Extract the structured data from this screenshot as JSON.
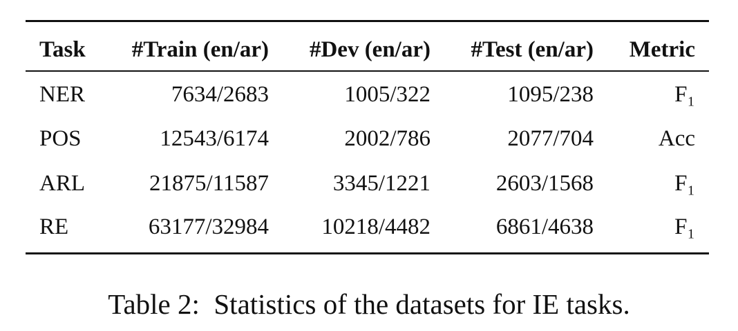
{
  "table": {
    "header": [
      "Task",
      "#Train (en/ar)",
      "#Dev (en/ar)",
      "#Test (en/ar)",
      "Metric"
    ],
    "rows": [
      [
        "NER",
        "7634/2683",
        "1005/322",
        "1095/238",
        "F₁"
      ],
      [
        "POS",
        "12543/6174",
        "2002/786",
        "2077/704",
        "Acc"
      ],
      [
        "ARL",
        "21875/11587",
        "3345/1221",
        "2603/1568",
        "F₁"
      ],
      [
        "RE",
        "63177/32984",
        "10218/4482",
        "6861/4638",
        "F₁"
      ]
    ]
  },
  "caption": {
    "label": "Table 2:",
    "text": "Statistics of the datasets for IE tasks."
  }
}
